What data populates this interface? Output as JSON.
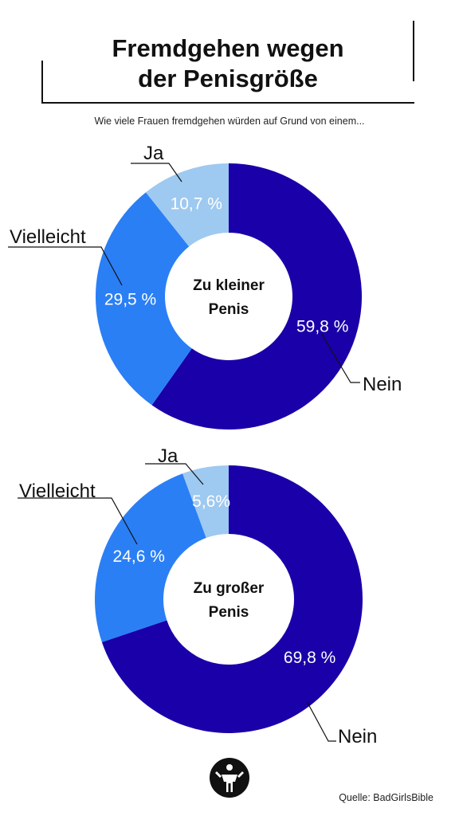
{
  "title": {
    "line1": "Fremdgehen wegen",
    "line2": "der Penisgröße"
  },
  "subtitle": "Wie viele Frauen fremdgehen würden auf Grund von einem...",
  "source": "Quelle: BadGirlsBible",
  "colors": {
    "nein": "#1a00a8",
    "vielleicht": "#2a7ff5",
    "ja": "#9ec9f0"
  },
  "chart_data": [
    {
      "type": "pie",
      "center_label": [
        "Zu kleiner",
        "Penis"
      ],
      "slices": [
        {
          "label": "Nein",
          "value": 59.8,
          "value_label": "59,8 %"
        },
        {
          "label": "Vielleicht",
          "value": 29.5,
          "value_label": "29,5 %"
        },
        {
          "label": "Ja",
          "value": 10.7,
          "value_label": "10,7 %"
        }
      ]
    },
    {
      "type": "pie",
      "center_label": [
        "Zu großer",
        "Penis"
      ],
      "slices": [
        {
          "label": "Nein",
          "value": 69.8,
          "value_label": "69,8 %"
        },
        {
          "label": "Vielleicht",
          "value": 24.6,
          "value_label": "24,6 %"
        },
        {
          "label": "Ja",
          "value": 5.6,
          "value_label": "5,6%"
        }
      ]
    }
  ]
}
